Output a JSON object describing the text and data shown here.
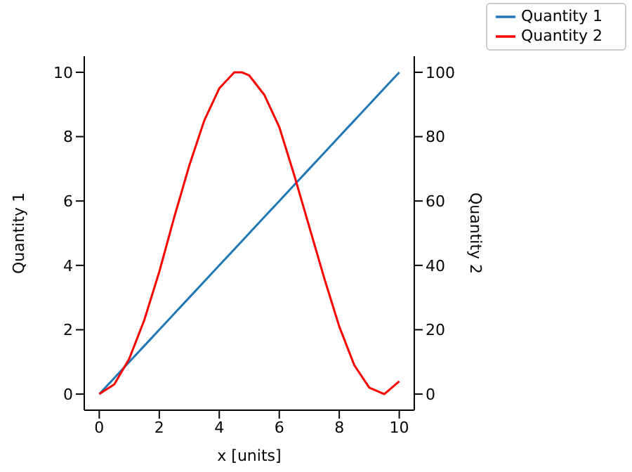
{
  "chart_data": {
    "type": "line",
    "xlabel": "x [units]",
    "ylabel": "Quantity 1",
    "y2label": "Quantity 2",
    "x": [
      0,
      0.5,
      1,
      1.5,
      2,
      2.5,
      3,
      3.5,
      4,
      4.5,
      4.75,
      5,
      5.5,
      6,
      6.5,
      7,
      7.5,
      8,
      8.5,
      9,
      9.5,
      10
    ],
    "series": [
      {
        "name": "Quantity 1",
        "color": "#1f77b4",
        "values": [
          0,
          0.5,
          1,
          1.5,
          2,
          2.5,
          3,
          3.5,
          4,
          4.5,
          4.75,
          5,
          5.5,
          6,
          6.5,
          7,
          7.5,
          8,
          8.5,
          9,
          9.5,
          10
        ]
      },
      {
        "name": "Quantity 2",
        "color": "#ff0000",
        "axis": "y2",
        "values": [
          0,
          3,
          11,
          23,
          38,
          55,
          71,
          85,
          95,
          100,
          100,
          99,
          93,
          83,
          68,
          52,
          36,
          21,
          9,
          2,
          0,
          4
        ]
      }
    ],
    "xlim": [
      -0.5,
      10.5
    ],
    "xticks": [
      0,
      2,
      4,
      6,
      8,
      10
    ],
    "ylim": [
      -0.5,
      10.5
    ],
    "yticks": [
      0,
      2,
      4,
      6,
      8,
      10
    ],
    "y2lim": [
      -5,
      105
    ],
    "y2ticks": [
      0,
      20,
      40,
      60,
      80,
      100
    ],
    "grid": false,
    "legend": "top right",
    "marker": "none",
    "line_style": "solid"
  }
}
